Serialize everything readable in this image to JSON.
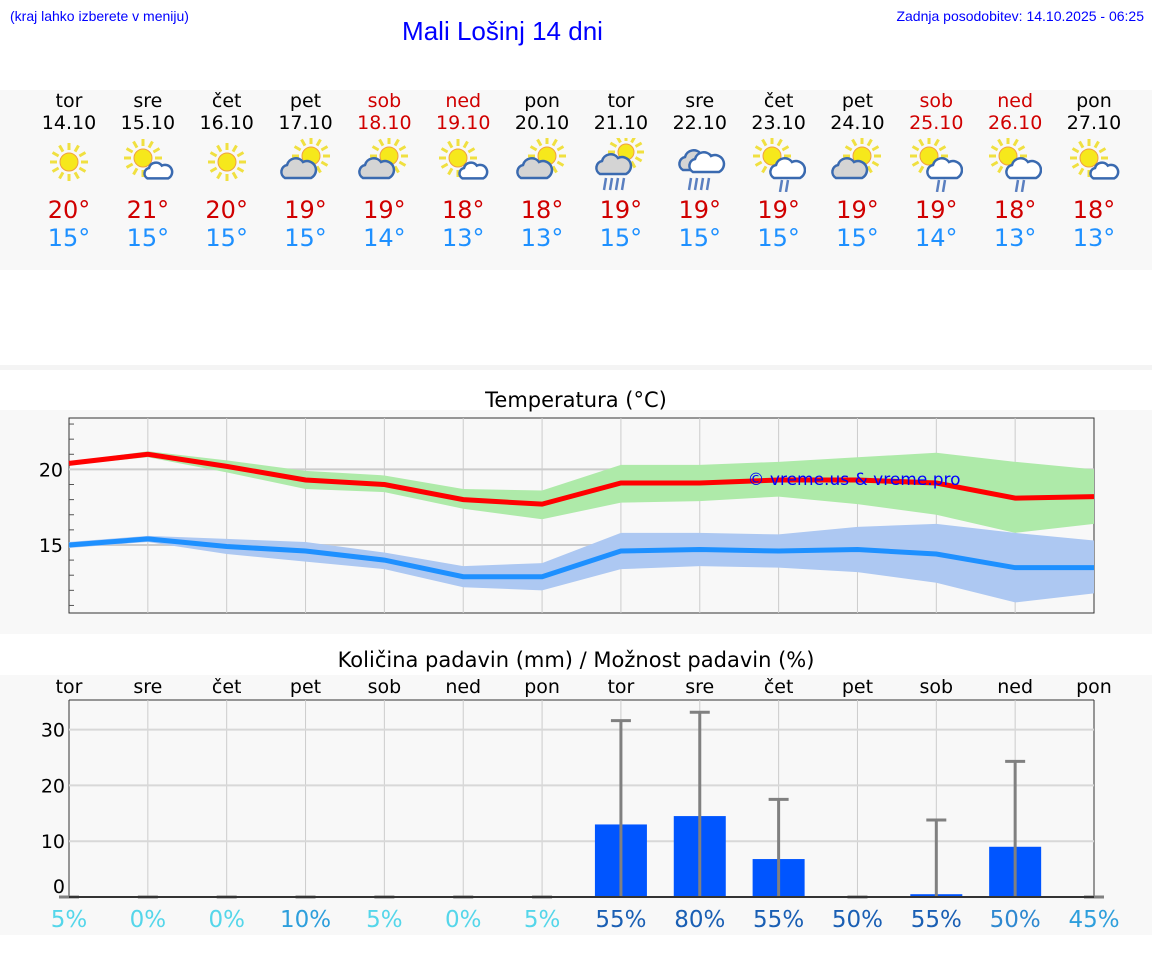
{
  "header": {
    "hint": "(kraj lahko izberete v meniju)",
    "title": "Mali Lošinj 14 dni",
    "updated": "Zadnja posodobitev: 14.10.2025 - 06:25"
  },
  "days": [
    {
      "name": "tor",
      "date": "14.10",
      "weekend": false,
      "icon": "sun",
      "max": "20°",
      "min": "15°"
    },
    {
      "name": "sre",
      "date": "15.10",
      "weekend": false,
      "icon": "sun-small-cloud",
      "max": "21°",
      "min": "15°"
    },
    {
      "name": "čet",
      "date": "16.10",
      "weekend": false,
      "icon": "sun",
      "max": "20°",
      "min": "15°"
    },
    {
      "name": "pet",
      "date": "17.10",
      "weekend": false,
      "icon": "sun-grey-cloud",
      "max": "19°",
      "min": "15°"
    },
    {
      "name": "sob",
      "date": "18.10",
      "weekend": true,
      "icon": "sun-grey-cloud",
      "max": "19°",
      "min": "14°"
    },
    {
      "name": "ned",
      "date": "19.10",
      "weekend": true,
      "icon": "sun-small-cloud",
      "max": "18°",
      "min": "13°"
    },
    {
      "name": "pon",
      "date": "20.10",
      "weekend": false,
      "icon": "sun-grey-cloud",
      "max": "18°",
      "min": "13°"
    },
    {
      "name": "tor",
      "date": "21.10",
      "weekend": false,
      "icon": "sun-grey-cloud-rain",
      "max": "19°",
      "min": "15°"
    },
    {
      "name": "sre",
      "date": "22.10",
      "weekend": false,
      "icon": "cloud-heavy-rain",
      "max": "19°",
      "min": "15°"
    },
    {
      "name": "čet",
      "date": "23.10",
      "weekend": false,
      "icon": "sun-cloud-light-rain",
      "max": "19°",
      "min": "15°"
    },
    {
      "name": "pet",
      "date": "24.10",
      "weekend": false,
      "icon": "sun-grey-cloud",
      "max": "19°",
      "min": "15°"
    },
    {
      "name": "sob",
      "date": "25.10",
      "weekend": true,
      "icon": "sun-cloud-light-rain",
      "max": "19°",
      "min": "14°"
    },
    {
      "name": "ned",
      "date": "26.10",
      "weekend": true,
      "icon": "sun-cloud-light-rain",
      "max": "18°",
      "min": "13°"
    },
    {
      "name": "pon",
      "date": "27.10",
      "weekend": false,
      "icon": "sun-small-cloud",
      "max": "18°",
      "min": "13°"
    }
  ],
  "colors": {
    "weekend": "#d00000",
    "max": "#d00000",
    "min": "#1e90ff"
  },
  "chart_data": [
    {
      "type": "line",
      "title": "Temperatura (°C)",
      "ylim": [
        10.5,
        23.4
      ],
      "yticks": [
        15,
        20
      ],
      "ytick_labels": [
        "15",
        "20"
      ],
      "grid": true,
      "watermark": "© vreme.us & vreme.pro",
      "series": [
        {
          "name": "max",
          "color": "#ff0000",
          "band_color": "#aeeaa9",
          "values": [
            20.4,
            21.0,
            20.2,
            19.3,
            19.0,
            18.0,
            17.7,
            19.1,
            19.1,
            19.3,
            19.3,
            19.1,
            18.1,
            18.2
          ],
          "band_upper": [
            20.5,
            21.2,
            20.6,
            19.9,
            19.6,
            18.7,
            18.6,
            20.3,
            20.3,
            20.5,
            20.8,
            21.1,
            20.5,
            20.0
          ],
          "band_lower": [
            20.3,
            20.8,
            19.8,
            18.7,
            18.5,
            17.4,
            16.7,
            17.8,
            17.9,
            18.2,
            17.7,
            17.0,
            15.8,
            16.4
          ]
        },
        {
          "name": "min",
          "color": "#1e90ff",
          "band_color": "#adc8f2",
          "values": [
            15.0,
            15.4,
            14.9,
            14.6,
            14.0,
            12.9,
            12.9,
            14.6,
            14.7,
            14.6,
            14.7,
            14.4,
            13.5,
            13.5
          ],
          "band_upper": [
            15.2,
            15.6,
            15.4,
            15.2,
            14.5,
            13.6,
            13.8,
            15.8,
            15.8,
            15.7,
            16.2,
            16.4,
            15.8,
            15.3
          ],
          "band_lower": [
            14.8,
            15.2,
            14.4,
            13.9,
            13.4,
            12.2,
            12.0,
            13.4,
            13.6,
            13.5,
            13.2,
            12.5,
            11.2,
            11.8
          ]
        }
      ]
    },
    {
      "type": "bar",
      "title": "Količina padavin (mm) / Možnost padavin (%)",
      "ylim": [
        0,
        35.3
      ],
      "yticks": [
        0,
        10,
        20,
        30
      ],
      "ytick_labels": [
        "0",
        "10",
        "20",
        "30"
      ],
      "grid": true,
      "categories": [
        "tor",
        "sre",
        "čet",
        "pet",
        "sob",
        "ned",
        "pon",
        "tor",
        "sre",
        "čet",
        "pet",
        "sob",
        "ned",
        "pon"
      ],
      "values": [
        0,
        0,
        0,
        0,
        0,
        0,
        0,
        13.0,
        14.5,
        6.8,
        0,
        0.5,
        9.0,
        0
      ],
      "error_max": [
        0,
        0,
        0,
        0,
        0,
        0,
        0,
        31.6,
        33.1,
        17.5,
        0,
        13.8,
        24.3,
        0
      ],
      "bar_color": "#0055ff",
      "error_color": "#808080",
      "probability": [
        "5%",
        "0%",
        "0%",
        "10%",
        "5%",
        "0%",
        "5%",
        "55%",
        "80%",
        "55%",
        "50%",
        "55%",
        "50%",
        "45%"
      ],
      "probability_colors": [
        "#55d6ea",
        "#55d6ea",
        "#55d6ea",
        "#2e9fdc",
        "#55d6ea",
        "#55d6ea",
        "#55d6ea",
        "#1a5fb4",
        "#1a5fb4",
        "#1a5fb4",
        "#1a5fb4",
        "#1a5fb4",
        "#2e88d0",
        "#2e9fdc"
      ]
    }
  ]
}
